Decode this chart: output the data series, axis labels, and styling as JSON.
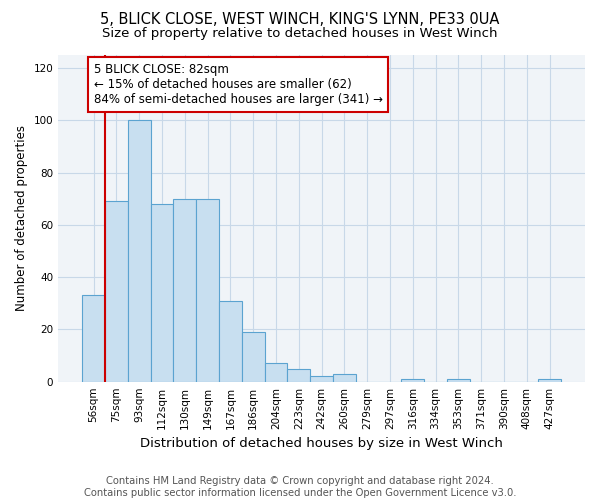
{
  "title": "5, BLICK CLOSE, WEST WINCH, KING'S LYNN, PE33 0UA",
  "subtitle": "Size of property relative to detached houses in West Winch",
  "xlabel": "Distribution of detached houses by size in West Winch",
  "ylabel": "Number of detached properties",
  "bin_labels": [
    "56sqm",
    "75sqm",
    "93sqm",
    "112sqm",
    "130sqm",
    "149sqm",
    "167sqm",
    "186sqm",
    "204sqm",
    "223sqm",
    "242sqm",
    "260sqm",
    "279sqm",
    "297sqm",
    "316sqm",
    "334sqm",
    "353sqm",
    "371sqm",
    "390sqm",
    "408sqm",
    "427sqm"
  ],
  "bar_values": [
    33,
    69,
    100,
    68,
    70,
    70,
    31,
    19,
    7,
    5,
    2,
    3,
    0,
    0,
    1,
    0,
    1,
    0,
    0,
    0,
    1
  ],
  "bar_color": "#c8dff0",
  "bar_edge_color": "#5ba3d0",
  "vline_x_index": 1,
  "vline_color": "#cc0000",
  "annotation_text": "5 BLICK CLOSE: 82sqm\n← 15% of detached houses are smaller (62)\n84% of semi-detached houses are larger (341) →",
  "annotation_box_edgecolor": "#cc0000",
  "annotation_fontsize": 8.5,
  "ylim": [
    0,
    125
  ],
  "yticks": [
    0,
    20,
    40,
    60,
    80,
    100,
    120
  ],
  "footer_text": "Contains HM Land Registry data © Crown copyright and database right 2024.\nContains public sector information licensed under the Open Government Licence v3.0.",
  "title_fontsize": 10.5,
  "subtitle_fontsize": 9.5,
  "xlabel_fontsize": 9.5,
  "ylabel_fontsize": 8.5,
  "tick_fontsize": 7.5,
  "footer_fontsize": 7.2,
  "grid_color": "#c8d8e8",
  "bg_color": "#f0f4f8"
}
